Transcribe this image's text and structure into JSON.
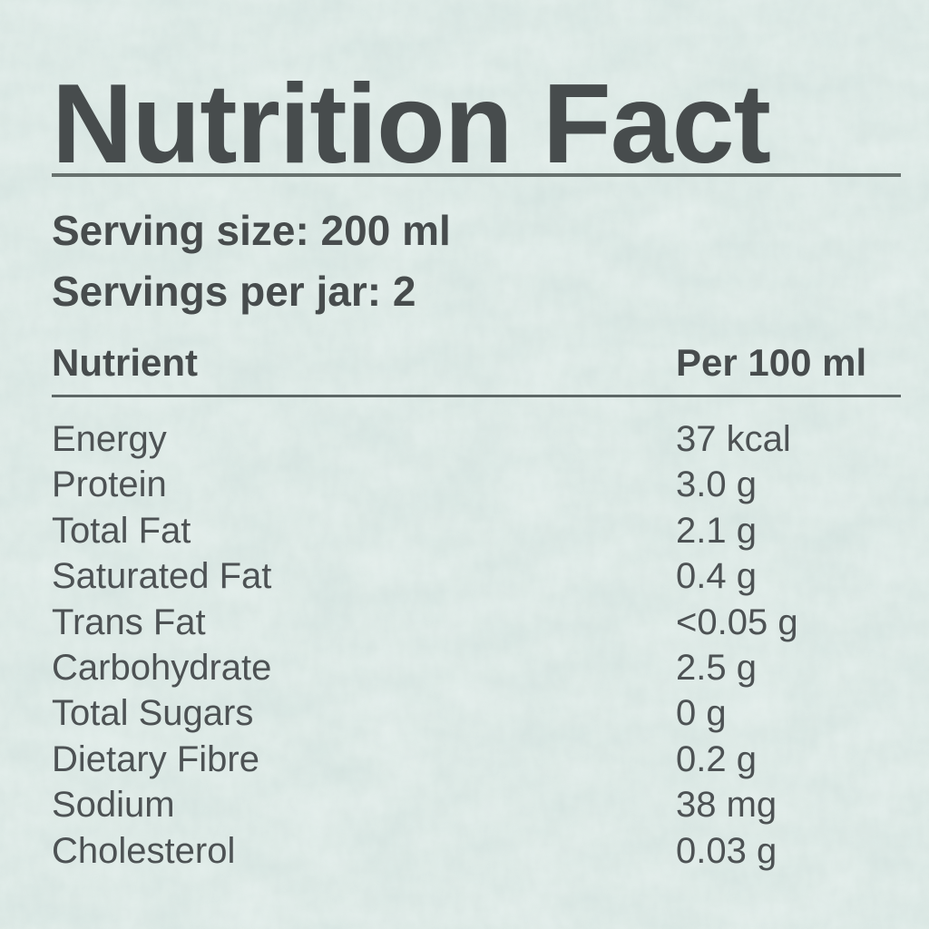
{
  "page": {
    "background_color": "#d9e7e3",
    "text_color": "#474c4d",
    "row_text_color": "#4d5254",
    "rule_color": "#68726f"
  },
  "label": {
    "title": "Nutrition Fact",
    "serving_size": "Serving size: 200 ml",
    "servings_per_jar": "Servings per jar: 2",
    "table": {
      "header": {
        "nutrient": "Nutrient",
        "amount": "Per 100 ml"
      },
      "rows": [
        {
          "nutrient": "Energy",
          "amount": "37 kcal"
        },
        {
          "nutrient": "Protein",
          "amount": "3.0 g"
        },
        {
          "nutrient": "Total Fat",
          "amount": "2.1 g"
        },
        {
          "nutrient": "Saturated Fat",
          "amount": "0.4 g"
        },
        {
          "nutrient": "Trans Fat",
          "amount": "<0.05 g"
        },
        {
          "nutrient": "Carbohydrate",
          "amount": "2.5 g"
        },
        {
          "nutrient": "Total Sugars",
          "amount": "0 g"
        },
        {
          "nutrient": "Dietary Fibre",
          "amount": "0.2 g"
        },
        {
          "nutrient": "Sodium",
          "amount": "38 mg"
        },
        {
          "nutrient": "Cholesterol",
          "amount": "0.03 g"
        }
      ]
    }
  }
}
